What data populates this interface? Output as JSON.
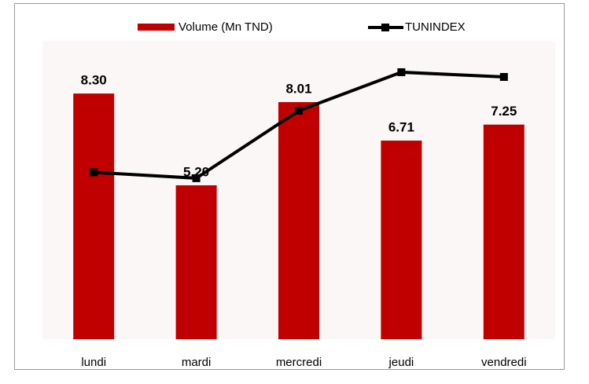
{
  "chart_data": {
    "type": "bar",
    "categories": [
      "lundi",
      "mardi",
      "mercredi",
      "jeudi",
      "vendredi"
    ],
    "ylim": [
      0,
      10
    ],
    "y2lim": [
      4960,
      5010
    ],
    "series": [
      {
        "name": "Volume (Mn TND)",
        "type": "bar",
        "color": "#c00000",
        "values": [
          8.3,
          5.2,
          8.01,
          6.71,
          7.25
        ],
        "value_labels": [
          "8.30",
          "5.20",
          "8.01",
          "6.71",
          "7.25"
        ]
      },
      {
        "name": "TUNINDEX",
        "type": "line",
        "axis": "y2",
        "color": "#000000",
        "values": [
          4988.2,
          4987.2,
          4998.6,
          5005.1,
          5004.3
        ]
      }
    ]
  }
}
